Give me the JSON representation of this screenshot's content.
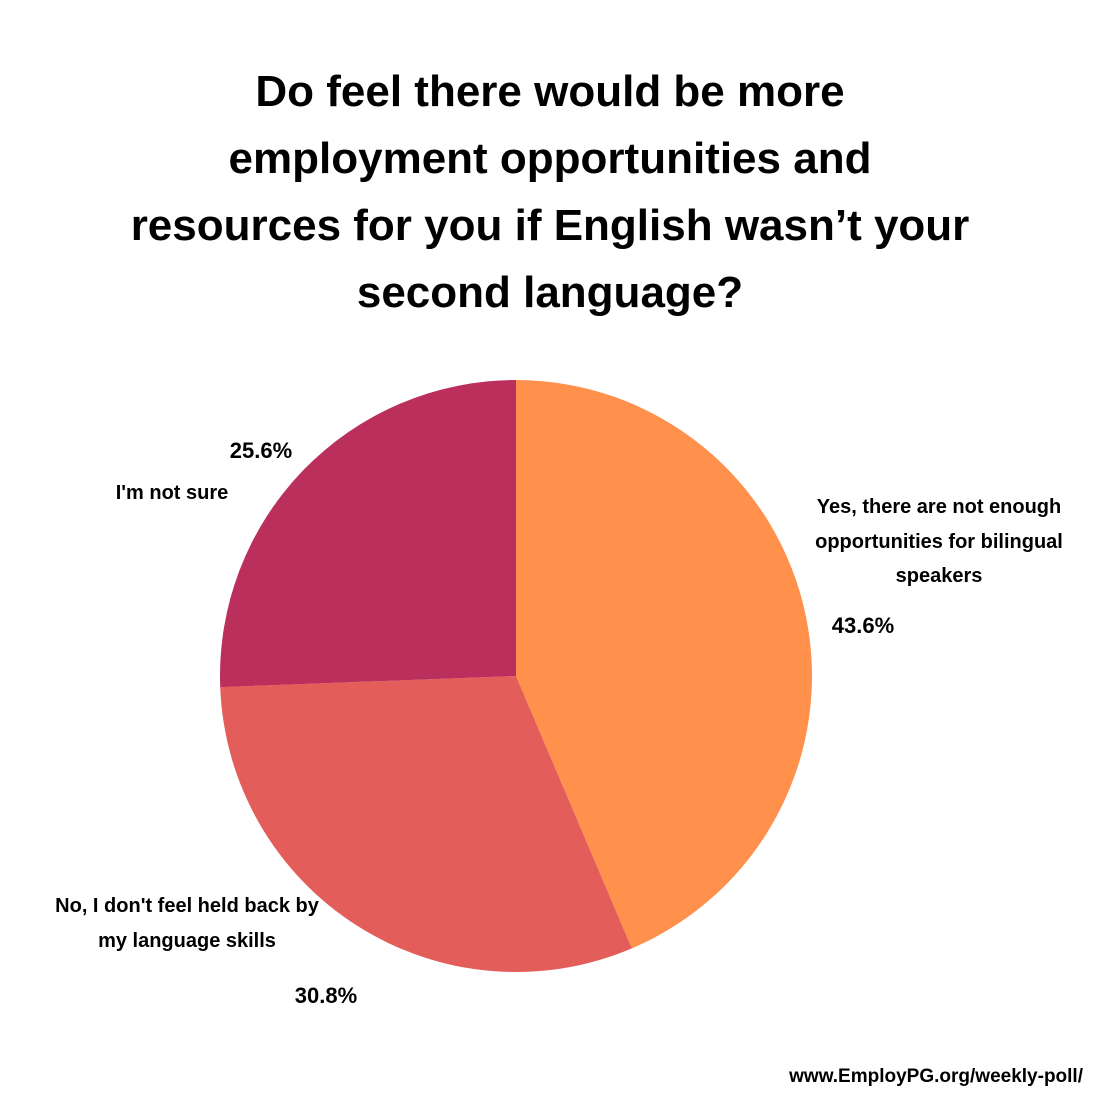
{
  "chart_data": {
    "type": "pie",
    "title": "Do feel there would be more employment opportunities and resources for you if English wasn’t your second language?",
    "categories": [
      "Yes, there are not enough opportunities for bilingual speakers",
      "No, I don't feel held back by my language skills",
      "I'm not sure"
    ],
    "values": [
      43.6,
      30.8,
      25.6
    ],
    "value_labels": [
      "43.6%",
      "30.8%",
      "25.6%"
    ],
    "colors": [
      "#FF914D",
      "#E35D5A",
      "#BA2F5B"
    ],
    "footer": "www.EmployPG.org/weekly-poll/"
  }
}
